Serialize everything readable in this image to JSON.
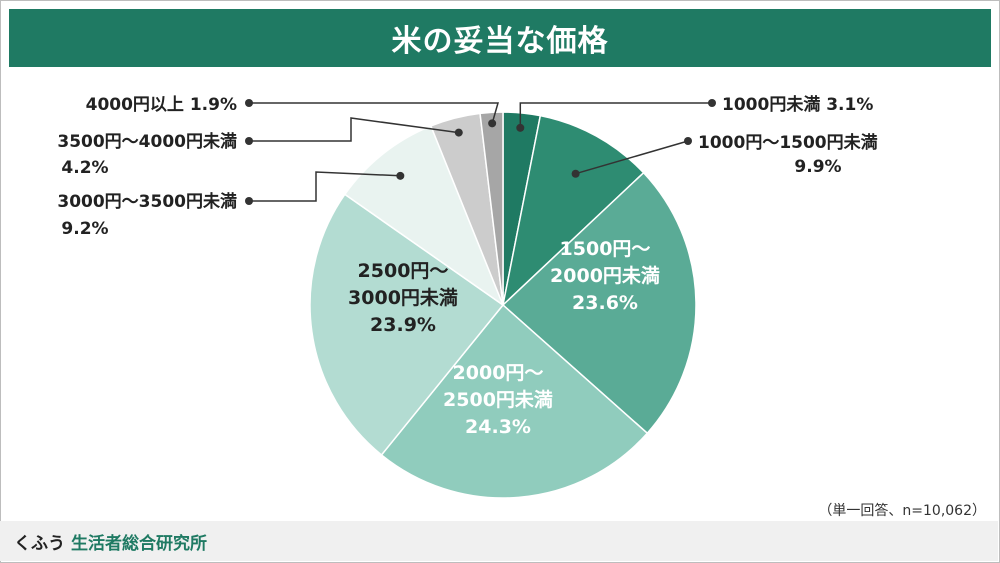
{
  "title": "米の妥当な価格",
  "note": "（単一回答、n=10,062）",
  "footer": {
    "brand_kana": "くふう",
    "brand_name": "生活者総合研究所"
  },
  "chart_data": {
    "type": "pie",
    "title": "米の妥当な価格",
    "start_angle_deg": 0,
    "direction": "clockwise",
    "slices": [
      {
        "lines": [
          "1000円未満 3.1%"
        ],
        "value": 3.1,
        "color": "#1f7a63",
        "label_position": "outside-right"
      },
      {
        "lines": [
          "1000円〜1500円未満",
          "9.9%"
        ],
        "value": 9.9,
        "color": "#2e8c72",
        "label_position": "outside-right"
      },
      {
        "lines": [
          "1500円〜",
          "2000円未満",
          "23.6%"
        ],
        "value": 23.6,
        "color": "#5aab96",
        "label_position": "inside"
      },
      {
        "lines": [
          "2000円〜",
          "2500円未満",
          "24.3%"
        ],
        "value": 24.3,
        "color": "#90ccbd",
        "label_position": "inside"
      },
      {
        "lines": [
          "2500円〜",
          "3000円未満",
          "23.9%"
        ],
        "value": 23.9,
        "color": "#b3dcd2",
        "label_position": "inside"
      },
      {
        "lines": [
          "3000円〜3500円未満",
          "9.2%"
        ],
        "value": 9.2,
        "color": "#e9f3f0",
        "label_position": "outside-left"
      },
      {
        "lines": [
          "3500円〜4000円未満",
          "4.2%"
        ],
        "value": 4.2,
        "color": "#cccccc",
        "label_position": "outside-left"
      },
      {
        "lines": [
          "4000円以上 1.9%"
        ],
        "value": 1.9,
        "color": "#a6a6a6",
        "label_position": "outside-left"
      }
    ]
  }
}
